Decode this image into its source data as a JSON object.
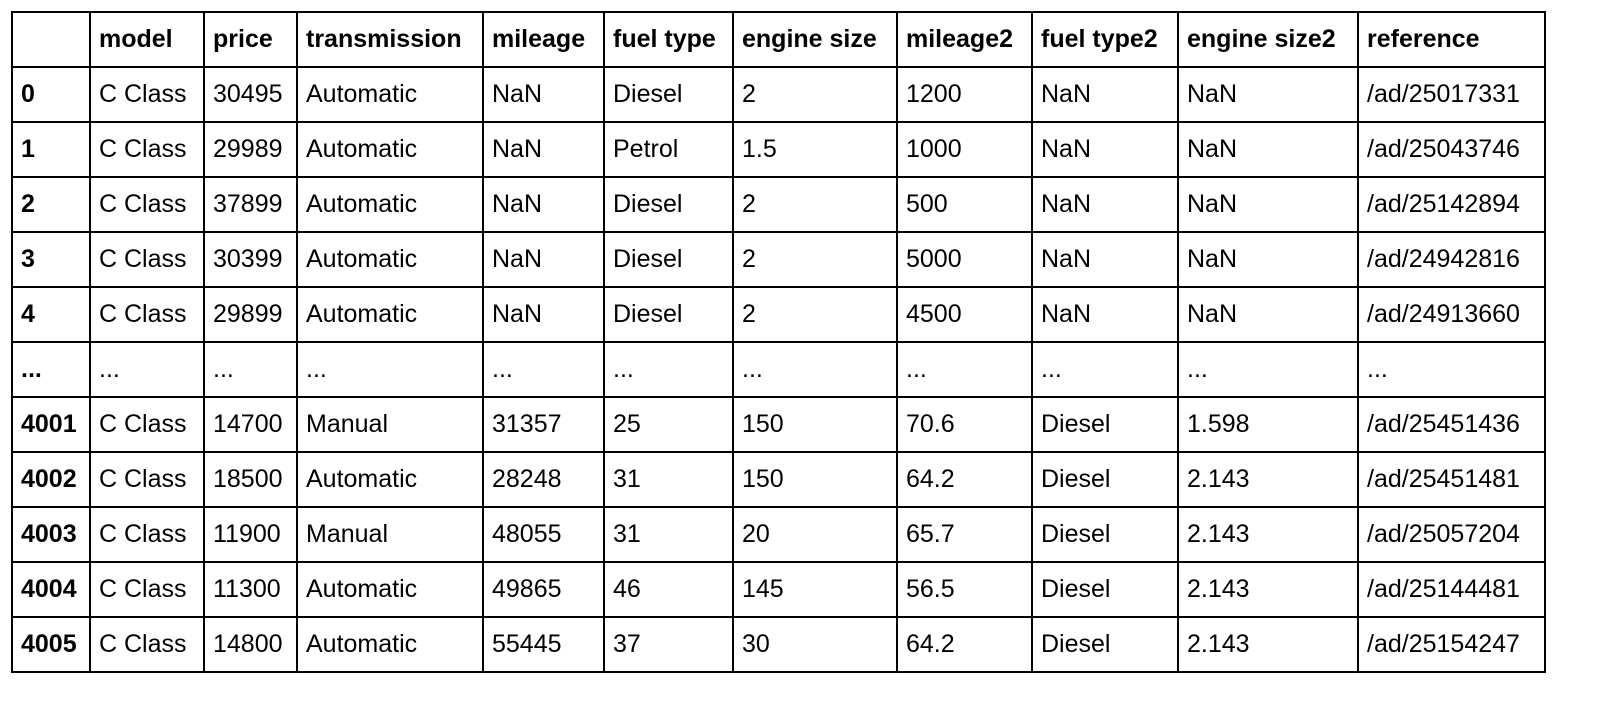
{
  "table": {
    "index_header": "",
    "columns": [
      "model",
      "price",
      "transmission",
      "mileage",
      "fuel type",
      "engine size",
      "mileage2",
      "fuel type2",
      "engine size2",
      "reference"
    ],
    "rows": [
      {
        "index": "0",
        "cells": [
          "C Class",
          "30495",
          "Automatic",
          "NaN",
          "Diesel",
          "2",
          "1200",
          "NaN",
          "NaN",
          "/ad/25017331"
        ]
      },
      {
        "index": "1",
        "cells": [
          "C Class",
          "29989",
          "Automatic",
          "NaN",
          "Petrol",
          "1.5",
          "1000",
          "NaN",
          "NaN",
          "/ad/25043746"
        ]
      },
      {
        "index": "2",
        "cells": [
          "C Class",
          "37899",
          "Automatic",
          "NaN",
          "Diesel",
          "2",
          "500",
          "NaN",
          "NaN",
          "/ad/25142894"
        ]
      },
      {
        "index": "3",
        "cells": [
          "C Class",
          "30399",
          "Automatic",
          "NaN",
          "Diesel",
          "2",
          "5000",
          "NaN",
          "NaN",
          "/ad/24942816"
        ]
      },
      {
        "index": "4",
        "cells": [
          "C Class",
          "29899",
          "Automatic",
          "NaN",
          "Diesel",
          "2",
          "4500",
          "NaN",
          "NaN",
          "/ad/24913660"
        ]
      },
      {
        "index": "...",
        "cells": [
          "...",
          "...",
          "...",
          "...",
          "...",
          "...",
          "...",
          "...",
          "...",
          "..."
        ]
      },
      {
        "index": "4001",
        "cells": [
          "C Class",
          "14700",
          "Manual",
          "31357",
          "25",
          "150",
          "70.6",
          "Diesel",
          "1.598",
          "/ad/25451436"
        ]
      },
      {
        "index": "4002",
        "cells": [
          "C Class",
          "18500",
          "Automatic",
          "28248",
          "31",
          "150",
          "64.2",
          "Diesel",
          "2.143",
          "/ad/25451481"
        ]
      },
      {
        "index": "4003",
        "cells": [
          "C Class",
          "11900",
          "Manual",
          "48055",
          "31",
          "20",
          "65.7",
          "Diesel",
          "2.143",
          "/ad/25057204"
        ]
      },
      {
        "index": "4004",
        "cells": [
          "C Class",
          "11300",
          "Automatic",
          "49865",
          "46",
          "145",
          "56.5",
          "Diesel",
          "2.143",
          "/ad/25144481"
        ]
      },
      {
        "index": "4005",
        "cells": [
          "C Class",
          "14800",
          "Automatic",
          "55445",
          "37",
          "30",
          "64.2",
          "Diesel",
          "2.143",
          "/ad/25154247"
        ]
      }
    ]
  }
}
